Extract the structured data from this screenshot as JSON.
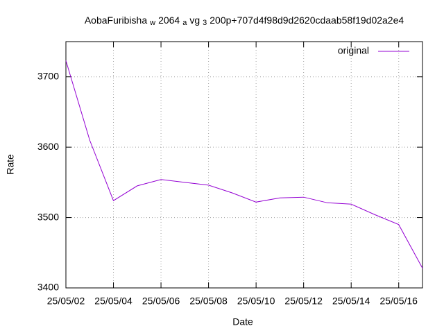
{
  "chart_data": {
    "type": "line",
    "title": [
      "AobaFuribisha",
      "w",
      "2064",
      "a",
      "vg",
      "3",
      "200p+707d4f98d9d2620cdaab58f19d02a2e4"
    ],
    "title_subscript": [
      false,
      true,
      false,
      true,
      false,
      true,
      false
    ],
    "x_label": "Date",
    "y_label": "Rate",
    "x": [
      "25/05/02",
      "25/05/03",
      "25/05/04",
      "25/05/05",
      "25/05/06",
      "25/05/07",
      "25/05/08",
      "25/05/09",
      "25/05/10",
      "25/05/11",
      "25/05/12",
      "25/05/13",
      "25/05/14",
      "25/05/15",
      "25/05/16",
      "25/05/17"
    ],
    "series": [
      {
        "name": "original",
        "color": "#9400d3",
        "values": [
          3723,
          3610,
          3524,
          3545,
          3554,
          3550,
          3546,
          3535,
          3522,
          3528,
          3529,
          3521,
          3519,
          3504,
          3490,
          3428
        ]
      }
    ],
    "xlim": [
      "25/05/02",
      "25/05/17"
    ],
    "xticks": [
      "25/05/02",
      "25/05/04",
      "25/05/06",
      "25/05/08",
      "25/05/10",
      "25/05/12",
      "25/05/14",
      "25/05/16"
    ],
    "ylim": [
      3400,
      3750
    ],
    "yticks": [
      3400,
      3500,
      3600,
      3700
    ],
    "grid": true,
    "legend_position": "top-right"
  }
}
